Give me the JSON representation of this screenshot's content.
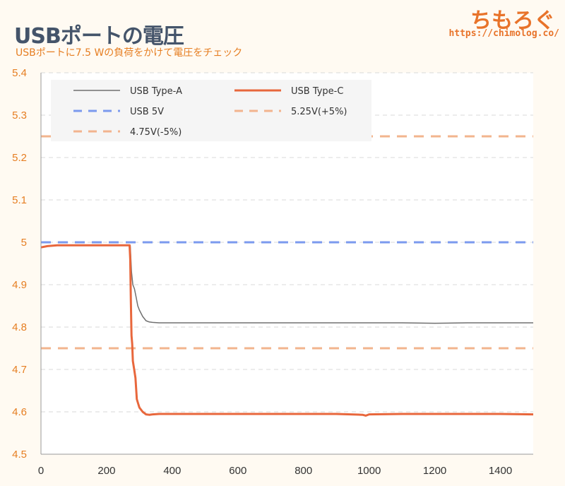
{
  "header": {
    "title": "USBポートの電圧",
    "subtitle": "USBポートに7.5 Wの負荷をかけて電圧をチェック",
    "brand": "ちもろぐ",
    "brand_url": "https://chimolog.co/"
  },
  "chart_data": {
    "type": "line",
    "title": "USBポートの電圧",
    "subtitle": "USBポートに7.5 Wの負荷をかけて電圧をチェック",
    "xlim": [
      0,
      1500
    ],
    "ylim": [
      4.5,
      5.4
    ],
    "xticks": [
      "0",
      "200",
      "400",
      "600",
      "800",
      "1000",
      "1200",
      "1400"
    ],
    "yticks": [
      "4.5",
      "4.6",
      "4.7",
      "4.8",
      "4.9",
      "5",
      "5.1",
      "5.2",
      "5.3",
      "5.4"
    ],
    "grid": true,
    "legend_position": "top-left",
    "series": [
      {
        "name": "USB Type-A",
        "color": "#707070",
        "style": "solid",
        "x": [
          0,
          20,
          50,
          100,
          150,
          200,
          250,
          272,
          276,
          280,
          285,
          290,
          295,
          300,
          310,
          320,
          330,
          340,
          360,
          400,
          500,
          600,
          700,
          800,
          900,
          1000,
          1100,
          1200,
          1300,
          1400,
          1500
        ],
        "y": [
          4.988,
          4.991,
          4.993,
          4.993,
          4.993,
          4.993,
          4.993,
          4.993,
          4.93,
          4.9,
          4.89,
          4.87,
          4.85,
          4.84,
          4.825,
          4.815,
          4.812,
          4.811,
          4.81,
          4.81,
          4.81,
          4.81,
          4.81,
          4.81,
          4.81,
          4.81,
          4.81,
          4.809,
          4.81,
          4.81,
          4.81
        ]
      },
      {
        "name": "USB Type-C",
        "color": "#e8673c",
        "style": "solid",
        "x": [
          0,
          20,
          50,
          100,
          150,
          200,
          250,
          270,
          272,
          274,
          276,
          278,
          280,
          284,
          288,
          292,
          296,
          300,
          310,
          320,
          330,
          340,
          360,
          400,
          500,
          600,
          700,
          800,
          900,
          980,
          990,
          1000,
          1100,
          1200,
          1300,
          1400,
          1500
        ],
        "y": [
          4.988,
          4.991,
          4.993,
          4.993,
          4.993,
          4.993,
          4.993,
          4.993,
          4.96,
          4.86,
          4.78,
          4.76,
          4.72,
          4.7,
          4.68,
          4.63,
          4.62,
          4.61,
          4.6,
          4.594,
          4.593,
          4.594,
          4.595,
          4.595,
          4.595,
          4.595,
          4.595,
          4.595,
          4.595,
          4.593,
          4.591,
          4.594,
          4.595,
          4.595,
          4.595,
          4.595,
          4.594
        ]
      },
      {
        "name": "USB 5V",
        "color": "#7b9aee",
        "style": "dashed",
        "x": [
          0,
          1500
        ],
        "y": [
          5.0,
          5.0
        ]
      },
      {
        "name": "5.25V(+5%)",
        "color": "#f2b48e",
        "style": "dashed",
        "x": [
          0,
          1500
        ],
        "y": [
          5.25,
          5.25
        ]
      },
      {
        "name": "4.75V(-5%)",
        "color": "#f2b48e",
        "style": "dashed",
        "x": [
          0,
          1500
        ],
        "y": [
          4.75,
          4.75
        ]
      }
    ]
  }
}
